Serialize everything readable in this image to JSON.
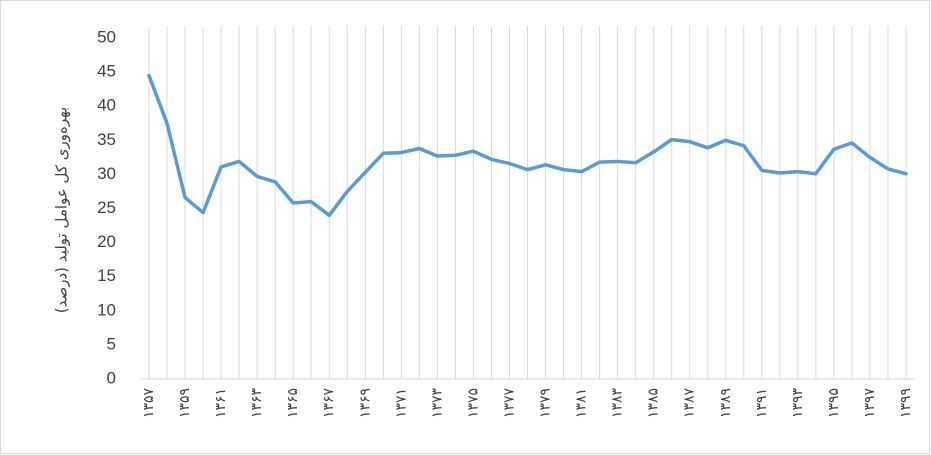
{
  "chart_data": {
    "type": "line",
    "y_label": "بهره‌وری کل عوامل تولید (درصد)",
    "categories": [
      "۱۳۵۷",
      null,
      "۱۳۵۹",
      null,
      "۱۳۶۱",
      null,
      "۱۳۶۳",
      null,
      "۱۳۶۵",
      null,
      "۱۳۶۷",
      null,
      "۱۳۶۹",
      null,
      "۱۳۷۱",
      null,
      "۱۳۷۳",
      null,
      "۱۳۷۵",
      null,
      "۱۳۷۷",
      null,
      "۱۳۷۹",
      null,
      "۱۳۸۱",
      null,
      "۱۳۸۳",
      null,
      "۱۳۸۵",
      null,
      "۱۳۸۷",
      null,
      "۱۳۸۹",
      null,
      "۱۳۹۱",
      null,
      "۱۳۹۳",
      null,
      "۱۳۹۵",
      null,
      "۱۳۹۷",
      null,
      "۱۳۹۹"
    ],
    "values": [
      44.5,
      37.5,
      26.6,
      24.4,
      31.1,
      31.9,
      29.7,
      28.9,
      25.8,
      26.0,
      24.0,
      27.5,
      30.3,
      33.1,
      33.2,
      33.8,
      32.7,
      32.8,
      33.4,
      32.2,
      31.6,
      30.7,
      31.4,
      30.7,
      30.4,
      31.8,
      31.9,
      31.7,
      33.3,
      35.1,
      34.8,
      33.9,
      35.0,
      34.2,
      30.6,
      30.2,
      30.4,
      30.1,
      33.7,
      34.6,
      32.5,
      30.8,
      30.1
    ],
    "color": "#5b9bd5",
    "ylim": [
      0,
      50
    ],
    "yticks": [
      0,
      5,
      10,
      15,
      20,
      25,
      30,
      35,
      40,
      45,
      50
    ],
    "grid": true
  }
}
